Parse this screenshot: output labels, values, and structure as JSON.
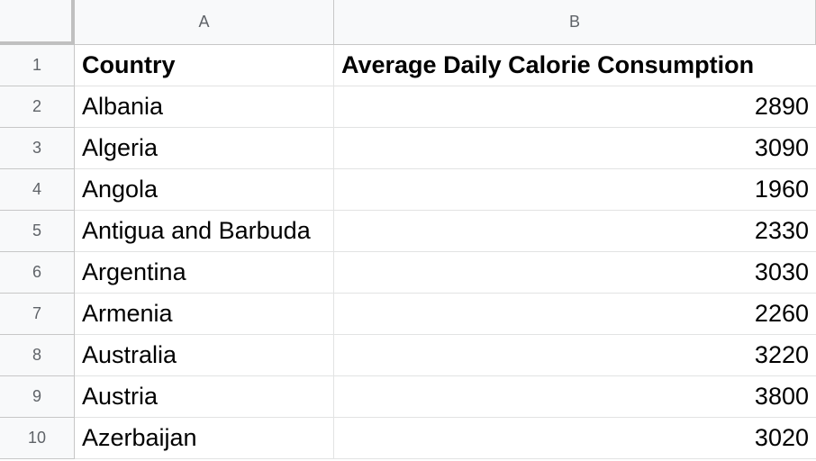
{
  "columns": [
    "A",
    "B"
  ],
  "rows": [
    {
      "num": "1",
      "country": "Country",
      "value": "Average Daily Calorie Consumption",
      "header": true
    },
    {
      "num": "2",
      "country": "Albania",
      "value": "2890"
    },
    {
      "num": "3",
      "country": "Algeria",
      "value": "3090"
    },
    {
      "num": "4",
      "country": "Angola",
      "value": "1960"
    },
    {
      "num": "5",
      "country": "Antigua and Barbuda",
      "value": "2330"
    },
    {
      "num": "6",
      "country": "Argentina",
      "value": "3030"
    },
    {
      "num": "7",
      "country": "Armenia",
      "value": "2260"
    },
    {
      "num": "8",
      "country": "Australia",
      "value": "3220"
    },
    {
      "num": "9",
      "country": "Austria",
      "value": "3800"
    },
    {
      "num": "10",
      "country": "Azerbaijan",
      "value": "3020"
    }
  ]
}
